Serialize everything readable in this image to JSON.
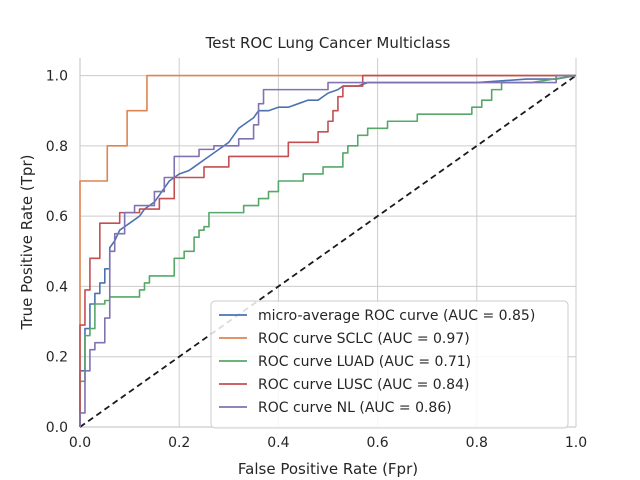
{
  "chart_data": {
    "type": "line",
    "title": "Test ROC Lung Cancer Multiclass",
    "xlabel": "False Positive Rate (Fpr)",
    "ylabel": "True Positive Rate (Tpr)",
    "xlim": [
      0.0,
      1.0
    ],
    "ylim": [
      0.0,
      1.05
    ],
    "xticks": [
      "0.0",
      "0.2",
      "0.4",
      "0.6",
      "0.8",
      "1.0"
    ],
    "yticks": [
      "0.0",
      "0.2",
      "0.4",
      "0.6",
      "0.8",
      "1.0"
    ],
    "grid": true,
    "legend_position": "lower-right",
    "diagonal": {
      "x": [
        0,
        1
      ],
      "y": [
        0,
        1
      ],
      "style": "dashed",
      "color": "#1a1a1a"
    },
    "series": [
      {
        "name": "micro-average ROC curve (AUC = 0.85)",
        "color": "#4c72b0",
        "x": [
          0.0,
          0.0,
          0.01,
          0.01,
          0.02,
          0.02,
          0.03,
          0.03,
          0.04,
          0.04,
          0.05,
          0.05,
          0.06,
          0.06,
          0.07,
          0.08,
          0.1,
          0.12,
          0.13,
          0.15,
          0.16,
          0.17,
          0.18,
          0.19,
          0.2,
          0.22,
          0.24,
          0.25,
          0.27,
          0.28,
          0.3,
          0.31,
          0.32,
          0.33,
          0.35,
          0.36,
          0.37,
          0.38,
          0.4,
          0.42,
          0.44,
          0.46,
          0.48,
          0.5,
          0.52,
          0.53,
          0.55,
          0.56,
          0.58,
          0.62,
          0.66,
          0.68,
          0.72,
          0.8,
          0.9,
          0.96,
          1.0
        ],
        "y": [
          0.0,
          0.16,
          0.16,
          0.28,
          0.28,
          0.35,
          0.35,
          0.38,
          0.38,
          0.41,
          0.41,
          0.45,
          0.45,
          0.51,
          0.53,
          0.56,
          0.58,
          0.6,
          0.62,
          0.64,
          0.66,
          0.68,
          0.7,
          0.71,
          0.72,
          0.73,
          0.75,
          0.76,
          0.78,
          0.79,
          0.81,
          0.83,
          0.85,
          0.86,
          0.88,
          0.9,
          0.9,
          0.9,
          0.91,
          0.91,
          0.92,
          0.93,
          0.93,
          0.95,
          0.96,
          0.97,
          0.97,
          0.97,
          0.98,
          0.98,
          0.98,
          0.98,
          0.98,
          0.98,
          0.99,
          0.99,
          1.0
        ]
      },
      {
        "name": "ROC curve SCLC (AUC = 0.97)",
        "color": "#dd8452",
        "x": [
          0.0,
          0.0,
          0.055,
          0.055,
          0.095,
          0.095,
          0.135,
          0.135,
          1.0
        ],
        "y": [
          0.0,
          0.7,
          0.7,
          0.8,
          0.8,
          0.9,
          0.9,
          1.0,
          1.0
        ]
      },
      {
        "name": "ROC curve LUAD (AUC = 0.71)",
        "color": "#55a868",
        "x": [
          0.0,
          0.0,
          0.01,
          0.01,
          0.02,
          0.02,
          0.03,
          0.03,
          0.05,
          0.05,
          0.06,
          0.06,
          0.08,
          0.08,
          0.12,
          0.12,
          0.13,
          0.13,
          0.14,
          0.14,
          0.19,
          0.19,
          0.21,
          0.21,
          0.23,
          0.23,
          0.24,
          0.24,
          0.25,
          0.25,
          0.26,
          0.26,
          0.33,
          0.33,
          0.36,
          0.36,
          0.38,
          0.38,
          0.4,
          0.4,
          0.45,
          0.45,
          0.49,
          0.49,
          0.53,
          0.53,
          0.54,
          0.54,
          0.56,
          0.56,
          0.58,
          0.58,
          0.62,
          0.62,
          0.65,
          0.65,
          0.68,
          0.68,
          0.79,
          0.79,
          0.81,
          0.81,
          0.83,
          0.83,
          0.85,
          0.85,
          0.91,
          0.91,
          1.0
        ],
        "y": [
          0.0,
          0.13,
          0.13,
          0.26,
          0.26,
          0.28,
          0.28,
          0.35,
          0.35,
          0.36,
          0.36,
          0.37,
          0.37,
          0.37,
          0.37,
          0.39,
          0.39,
          0.41,
          0.41,
          0.43,
          0.43,
          0.48,
          0.48,
          0.5,
          0.5,
          0.54,
          0.54,
          0.56,
          0.56,
          0.57,
          0.57,
          0.61,
          0.61,
          0.63,
          0.63,
          0.65,
          0.65,
          0.67,
          0.67,
          0.7,
          0.7,
          0.72,
          0.72,
          0.74,
          0.74,
          0.78,
          0.78,
          0.8,
          0.8,
          0.83,
          0.83,
          0.85,
          0.85,
          0.87,
          0.87,
          0.87,
          0.87,
          0.89,
          0.89,
          0.91,
          0.91,
          0.93,
          0.93,
          0.96,
          0.96,
          0.98,
          0.98,
          0.98,
          1.0
        ]
      },
      {
        "name": "ROC curve LUSC (AUC = 0.84)",
        "color": "#c44e52",
        "x": [
          0.0,
          0.0,
          0.01,
          0.01,
          0.02,
          0.02,
          0.04,
          0.04,
          0.06,
          0.06,
          0.08,
          0.08,
          0.1,
          0.1,
          0.12,
          0.12,
          0.16,
          0.16,
          0.19,
          0.19,
          0.25,
          0.25,
          0.3,
          0.3,
          0.32,
          0.32,
          0.42,
          0.42,
          0.48,
          0.48,
          0.5,
          0.5,
          0.51,
          0.51,
          0.52,
          0.52,
          0.53,
          0.53,
          0.54,
          0.54,
          0.57,
          0.57,
          1.0
        ],
        "y": [
          0.0,
          0.29,
          0.29,
          0.39,
          0.39,
          0.48,
          0.48,
          0.58,
          0.58,
          0.58,
          0.58,
          0.61,
          0.61,
          0.61,
          0.61,
          0.62,
          0.62,
          0.65,
          0.65,
          0.71,
          0.71,
          0.74,
          0.74,
          0.77,
          0.77,
          0.77,
          0.77,
          0.81,
          0.81,
          0.84,
          0.84,
          0.87,
          0.87,
          0.9,
          0.9,
          0.94,
          0.94,
          0.97,
          0.97,
          0.97,
          0.97,
          1.0,
          1.0
        ]
      },
      {
        "name": "ROC curve NL (AUC = 0.86)",
        "color": "#8172b3",
        "x": [
          0.0,
          0.0,
          0.01,
          0.01,
          0.02,
          0.02,
          0.03,
          0.03,
          0.05,
          0.05,
          0.06,
          0.06,
          0.07,
          0.07,
          0.09,
          0.09,
          0.11,
          0.11,
          0.15,
          0.15,
          0.17,
          0.17,
          0.19,
          0.19,
          0.24,
          0.24,
          0.27,
          0.27,
          0.32,
          0.32,
          0.35,
          0.35,
          0.36,
          0.36,
          0.37,
          0.37,
          0.4,
          0.4,
          0.5,
          0.5,
          0.57,
          0.57,
          0.96,
          0.96,
          1.0
        ],
        "y": [
          0.0,
          0.04,
          0.04,
          0.16,
          0.16,
          0.22,
          0.22,
          0.24,
          0.24,
          0.31,
          0.31,
          0.5,
          0.5,
          0.55,
          0.55,
          0.61,
          0.61,
          0.63,
          0.63,
          0.67,
          0.67,
          0.71,
          0.71,
          0.77,
          0.77,
          0.79,
          0.79,
          0.8,
          0.8,
          0.82,
          0.82,
          0.86,
          0.86,
          0.92,
          0.92,
          0.96,
          0.96,
          0.96,
          0.96,
          0.98,
          0.98,
          0.98,
          0.98,
          1.0,
          1.0
        ]
      }
    ]
  }
}
